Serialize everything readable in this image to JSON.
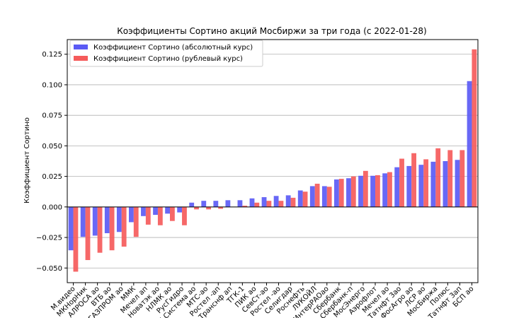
{
  "chart_data": {
    "type": "bar",
    "title": "Коэффициенты Сортино акций Мосбиржи за три года (с 2022-01-28)",
    "xlabel": "",
    "ylabel": "Коэффициент Сортино",
    "ylim": [
      -0.062,
      0.137
    ],
    "yticks": [
      -0.05,
      -0.025,
      0.0,
      0.025,
      0.05,
      0.075,
      0.1,
      0.125
    ],
    "ytick_labels": [
      "−0.050",
      "−0.025",
      "0.000",
      "0.025",
      "0.050",
      "0.075",
      "0.100",
      "0.125"
    ],
    "grid": true,
    "legend_position": "top-left",
    "categories": [
      "М.видео",
      "МКНорНик",
      "АЛРОСА ао",
      "ВТБ ао",
      "ГАЗПРОМ ао",
      "ММК",
      "Мечел ап",
      "Новатэк ао",
      "НЛМК ао",
      "РусГидро",
      "АФК Система ао",
      "МТС-ао",
      "Ростел -ап",
      "Транснф ап",
      "ТГК-1",
      "ПИК ао",
      "СевСт-ао",
      "Ростел -ао",
      "Селигдар",
      "Роснефть",
      "ЛУКОЙЛ",
      "ИнтерРАОао",
      "Сбербанк",
      "Сбербанк-п",
      "МосЭнерго",
      "Аэрофлот",
      "Мечел ао",
      "Татнфт 3ао",
      "ФосАгро ао",
      "ЛСР ао",
      "МосБиржа",
      "Полюс",
      "Татнфт 3ап",
      "БСП ао"
    ],
    "series": [
      {
        "name": "Коэффициент Сортино (абсолютный курс)",
        "color": "#5b5bf5",
        "values": [
          -0.0355,
          -0.0245,
          -0.0235,
          -0.0215,
          -0.0205,
          -0.0125,
          -0.0075,
          -0.0065,
          -0.0055,
          -0.0045,
          0.0035,
          0.005,
          0.005,
          0.0055,
          0.0055,
          0.007,
          0.008,
          0.009,
          0.0095,
          0.0135,
          0.017,
          0.017,
          0.0225,
          0.0235,
          0.0255,
          0.0255,
          0.0275,
          0.0325,
          0.0335,
          0.0345,
          0.037,
          0.0375,
          0.0385,
          0.103
        ]
      },
      {
        "name": "Коэффициент Сортино (рублевый курс)",
        "color": "#f55b5b",
        "values": [
          -0.053,
          -0.0435,
          -0.0375,
          -0.0355,
          -0.0325,
          -0.0245,
          -0.0145,
          -0.015,
          -0.0115,
          -0.015,
          -0.002,
          -0.002,
          -0.0015,
          0.0,
          0.001,
          0.0035,
          0.005,
          0.005,
          0.0075,
          0.0125,
          0.019,
          0.0165,
          0.023,
          0.025,
          0.0295,
          0.026,
          0.0285,
          0.0395,
          0.044,
          0.039,
          0.048,
          0.0465,
          0.0465,
          0.129
        ]
      }
    ]
  }
}
